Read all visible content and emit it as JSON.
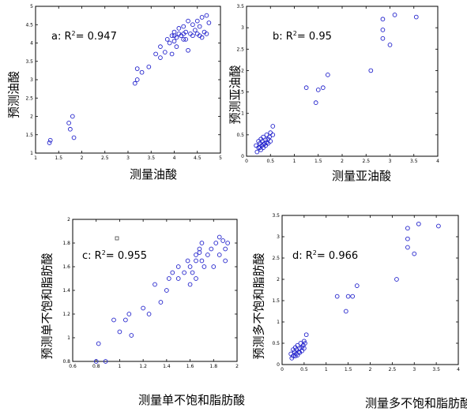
{
  "chart_data": [
    {
      "type": "scatter",
      "id": "a",
      "annotation": {
        "label": "a: R",
        "sup": "2",
        "value": "= 0.947"
      },
      "xlabel": "测量油酸",
      "ylabel": "预测油酸",
      "xlim": [
        1,
        5
      ],
      "ylim": [
        1,
        5
      ],
      "xticks": [
        "1",
        "1.5",
        "2",
        "2.5",
        "3",
        "3.5",
        "4",
        "4.5",
        "5"
      ],
      "yticks": [
        "1",
        "1.5",
        "2",
        "2.5",
        "3",
        "3.5",
        "4",
        "4.5",
        "5"
      ],
      "points": [
        [
          1.3,
          1.28
        ],
        [
          1.32,
          1.35
        ],
        [
          1.72,
          1.82
        ],
        [
          1.75,
          1.65
        ],
        [
          1.8,
          2.0
        ],
        [
          1.83,
          1.42
        ],
        [
          3.15,
          2.9
        ],
        [
          3.2,
          3.0
        ],
        [
          3.2,
          3.3
        ],
        [
          3.3,
          3.2
        ],
        [
          3.45,
          3.35
        ],
        [
          3.6,
          3.7
        ],
        [
          3.7,
          3.6
        ],
        [
          3.7,
          3.9
        ],
        [
          3.8,
          3.75
        ],
        [
          3.85,
          4.1
        ],
        [
          3.9,
          4.0
        ],
        [
          3.95,
          4.2
        ],
        [
          3.95,
          3.7
        ],
        [
          4.0,
          4.3
        ],
        [
          4.0,
          4.05
        ],
        [
          4.05,
          4.15
        ],
        [
          4.05,
          3.9
        ],
        [
          4.1,
          4.4
        ],
        [
          4.15,
          4.2
        ],
        [
          4.2,
          4.1
        ],
        [
          4.2,
          4.45
        ],
        [
          4.25,
          4.3
        ],
        [
          4.3,
          3.8
        ],
        [
          4.3,
          4.6
        ],
        [
          4.35,
          4.25
        ],
        [
          4.4,
          4.5
        ],
        [
          4.4,
          4.2
        ],
        [
          4.45,
          4.35
        ],
        [
          4.5,
          4.6
        ],
        [
          4.5,
          4.25
        ],
        [
          4.55,
          4.45
        ],
        [
          4.6,
          4.15
        ],
        [
          4.6,
          4.7
        ],
        [
          4.65,
          4.3
        ],
        [
          4.7,
          4.75
        ],
        [
          4.75,
          4.55
        ],
        [
          4.7,
          4.25
        ],
        [
          4.55,
          4.2
        ],
        [
          4.0,
          4.2
        ],
        [
          4.1,
          4.25
        ],
        [
          4.2,
          4.25
        ],
        [
          4.25,
          4.1
        ]
      ]
    },
    {
      "type": "scatter",
      "id": "b",
      "annotation": {
        "label": "b: R",
        "sup": "2",
        "value": "= 0.95"
      },
      "xlabel": "测量亚油酸",
      "ylabel": "预测亚油酸",
      "xlim": [
        0,
        4
      ],
      "ylim": [
        0,
        3.5
      ],
      "xticks": [
        "0",
        "0.5",
        "1",
        "1.5",
        "2",
        "2.5",
        "3",
        "3.5",
        "4"
      ],
      "yticks": [
        "0",
        "0.5",
        "1",
        "1.5",
        "2",
        "2.5",
        "3",
        "3.5"
      ],
      "points": [
        [
          0.2,
          0.25
        ],
        [
          0.22,
          0.1
        ],
        [
          0.25,
          0.35
        ],
        [
          0.25,
          0.2
        ],
        [
          0.28,
          0.3
        ],
        [
          0.3,
          0.15
        ],
        [
          0.3,
          0.4
        ],
        [
          0.32,
          0.25
        ],
        [
          0.33,
          0.35
        ],
        [
          0.35,
          0.2
        ],
        [
          0.35,
          0.45
        ],
        [
          0.38,
          0.3
        ],
        [
          0.4,
          0.38
        ],
        [
          0.4,
          0.25
        ],
        [
          0.42,
          0.5
        ],
        [
          0.45,
          0.4
        ],
        [
          0.45,
          0.3
        ],
        [
          0.48,
          0.45
        ],
        [
          0.5,
          0.55
        ],
        [
          0.5,
          0.35
        ],
        [
          0.55,
          0.5
        ],
        [
          0.55,
          0.7
        ],
        [
          0.28,
          0.2
        ],
        [
          0.36,
          0.28
        ],
        [
          0.42,
          0.32
        ],
        [
          1.25,
          1.6
        ],
        [
          1.45,
          1.25
        ],
        [
          1.5,
          1.55
        ],
        [
          1.6,
          1.6
        ],
        [
          1.7,
          1.9
        ],
        [
          2.6,
          2.0
        ],
        [
          2.85,
          2.75
        ],
        [
          2.85,
          2.95
        ],
        [
          2.85,
          3.2
        ],
        [
          3.0,
          2.6
        ],
        [
          3.1,
          3.3
        ],
        [
          3.55,
          3.25
        ]
      ]
    },
    {
      "type": "scatter",
      "id": "c",
      "annotation": {
        "label": "c: R",
        "sup": "2",
        "value": "= 0.955"
      },
      "xlabel": "测量单不饱和脂肪酸",
      "ylabel": "预测单不饱和脂肪酸",
      "xlim": [
        0.6,
        2
      ],
      "ylim": [
        0.8,
        2
      ],
      "xticks": [
        "0.6",
        "0.8",
        "1",
        "1.2",
        "1.4",
        "1.6",
        "1.8",
        "2"
      ],
      "yticks": [
        "0.8",
        "1",
        "1.2",
        "1.4",
        "1.6",
        "1.8",
        "2"
      ],
      "points": [
        [
          0.8,
          0.8
        ],
        [
          0.82,
          0.95
        ],
        [
          0.88,
          0.8
        ],
        [
          0.95,
          1.15
        ],
        [
          1.0,
          1.05
        ],
        [
          1.05,
          1.15
        ],
        [
          1.08,
          1.2
        ],
        [
          1.1,
          1.02
        ],
        [
          1.2,
          1.25
        ],
        [
          1.25,
          1.2
        ],
        [
          1.3,
          1.45
        ],
        [
          1.35,
          1.3
        ],
        [
          1.4,
          1.4
        ],
        [
          1.42,
          1.5
        ],
        [
          1.45,
          1.55
        ],
        [
          1.5,
          1.5
        ],
        [
          1.5,
          1.6
        ],
        [
          1.55,
          1.55
        ],
        [
          1.58,
          1.65
        ],
        [
          1.6,
          1.45
        ],
        [
          1.6,
          1.6
        ],
        [
          1.62,
          1.55
        ],
        [
          1.65,
          1.5
        ],
        [
          1.65,
          1.7
        ],
        [
          1.68,
          1.75
        ],
        [
          1.7,
          1.8
        ],
        [
          1.7,
          1.65
        ],
        [
          1.72,
          1.6
        ],
        [
          1.75,
          1.7
        ],
        [
          1.78,
          1.75
        ],
        [
          1.8,
          1.6
        ],
        [
          1.82,
          1.8
        ],
        [
          1.85,
          1.7
        ],
        [
          1.85,
          1.85
        ],
        [
          1.88,
          1.82
        ],
        [
          1.9,
          1.65
        ],
        [
          1.92,
          1.8
        ],
        [
          1.9,
          1.75
        ],
        [
          1.65,
          1.65
        ],
        [
          1.68,
          1.72
        ]
      ]
    },
    {
      "type": "scatter",
      "id": "d",
      "annotation": {
        "label": "d: R",
        "sup": "2",
        "value": "= 0.966"
      },
      "xlabel": "测量多不饱和脂肪酸",
      "ylabel": "预测多不饱和脂肪酸",
      "xlim": [
        0,
        4
      ],
      "ylim": [
        0,
        3.5
      ],
      "xticks": [
        "0",
        "0.5",
        "1",
        "1.5",
        "2",
        "2.5",
        "3",
        "3.5",
        "4"
      ],
      "yticks": [
        "0",
        "0.5",
        "1",
        "1.5",
        "2",
        "2.5",
        "3",
        "3.5"
      ],
      "points": [
        [
          0.2,
          0.25
        ],
        [
          0.22,
          0.15
        ],
        [
          0.25,
          0.35
        ],
        [
          0.25,
          0.2
        ],
        [
          0.28,
          0.3
        ],
        [
          0.3,
          0.2
        ],
        [
          0.3,
          0.4
        ],
        [
          0.32,
          0.25
        ],
        [
          0.33,
          0.35
        ],
        [
          0.35,
          0.22
        ],
        [
          0.35,
          0.45
        ],
        [
          0.38,
          0.3
        ],
        [
          0.4,
          0.38
        ],
        [
          0.4,
          0.28
        ],
        [
          0.42,
          0.5
        ],
        [
          0.45,
          0.4
        ],
        [
          0.45,
          0.32
        ],
        [
          0.48,
          0.45
        ],
        [
          0.5,
          0.55
        ],
        [
          0.5,
          0.38
        ],
        [
          0.52,
          0.5
        ],
        [
          0.55,
          0.7
        ],
        [
          1.25,
          1.6
        ],
        [
          1.45,
          1.25
        ],
        [
          1.5,
          1.6
        ],
        [
          1.6,
          1.6
        ],
        [
          1.7,
          1.85
        ],
        [
          2.6,
          2.0
        ],
        [
          2.85,
          2.75
        ],
        [
          2.85,
          2.95
        ],
        [
          2.85,
          3.2
        ],
        [
          3.0,
          2.6
        ],
        [
          3.1,
          3.3
        ],
        [
          3.55,
          3.25
        ]
      ]
    }
  ]
}
